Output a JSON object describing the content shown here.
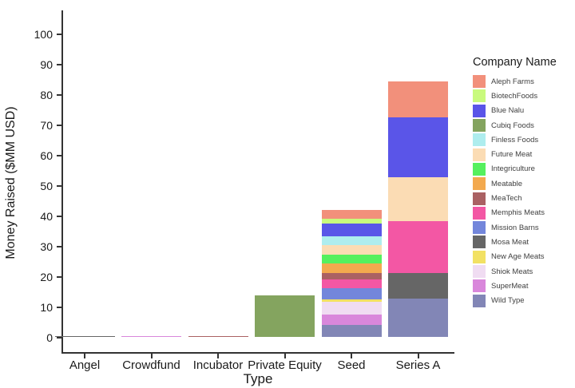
{
  "chart_data": {
    "type": "stacked_bar",
    "title": "",
    "xlabel": "Type",
    "ylabel": "Money Raised ($MM USD)",
    "legend_title": "Company Name",
    "legend_position": "right",
    "grid": false,
    "ylim": [
      0,
      100
    ],
    "yticks": [
      0,
      10,
      20,
      30,
      40,
      50,
      60,
      70,
      80,
      90,
      100
    ],
    "categories": [
      "Angel",
      "Crowdfund",
      "Incubator",
      "Private Equity",
      "Seed",
      "Series A"
    ],
    "companies": [
      {
        "name": "Aleph Farms",
        "color": "#F2907B"
      },
      {
        "name": "BiotechFoods",
        "color": "#C9FA7D"
      },
      {
        "name": "Blue Nalu",
        "color": "#5A55E8"
      },
      {
        "name": "Cubiq Foods",
        "color": "#84A45F"
      },
      {
        "name": "Finless Foods",
        "color": "#AEEDEE"
      },
      {
        "name": "Future Meat",
        "color": "#FBDCB4"
      },
      {
        "name": "Integriculture",
        "color": "#55F05E"
      },
      {
        "name": "Meatable",
        "color": "#F3A94E"
      },
      {
        "name": "MeaTech",
        "color": "#AA6163"
      },
      {
        "name": "Memphis Meats",
        "color": "#F357A4"
      },
      {
        "name": "Mission Barns",
        "color": "#7386DB"
      },
      {
        "name": "Mosa Meat",
        "color": "#666666"
      },
      {
        "name": "New Age Meats",
        "color": "#F2E163"
      },
      {
        "name": "Shiok Meats",
        "color": "#F0DCF2"
      },
      {
        "name": "SuperMeat",
        "color": "#D987DB"
      },
      {
        "name": "Wild Type",
        "color": "#8286B6"
      }
    ],
    "stacks_note": "segments listed bottom-to-top; values in $MM USD",
    "stacks": {
      "Angel": [
        {
          "company": "Mosa Meat",
          "value": 0.4
        }
      ],
      "Crowdfund": [
        {
          "company": "SuperMeat",
          "value": 0.3
        }
      ],
      "Incubator": [
        {
          "company": "MeaTech",
          "value": 0.5
        }
      ],
      "Private Equity": [
        {
          "company": "Cubiq Foods",
          "value": 13.8
        }
      ],
      "Seed": [
        {
          "company": "Wild Type",
          "value": 4.1
        },
        {
          "company": "SuperMeat",
          "value": 3.3
        },
        {
          "company": "Shiok Meats",
          "value": 4.2
        },
        {
          "company": "New Age Meats",
          "value": 0.8
        },
        {
          "company": "Mission Barns",
          "value": 3.9
        },
        {
          "company": "Memphis Meats",
          "value": 2.7
        },
        {
          "company": "MeaTech",
          "value": 2.3
        },
        {
          "company": "Meatable",
          "value": 3.1
        },
        {
          "company": "Integriculture",
          "value": 2.9
        },
        {
          "company": "Future Meat",
          "value": 3.1
        },
        {
          "company": "Finless Foods",
          "value": 3.0
        },
        {
          "company": "Blue Nalu",
          "value": 4.0
        },
        {
          "company": "BiotechFoods",
          "value": 1.7
        },
        {
          "company": "Aleph Farms",
          "value": 2.9
        }
      ],
      "Series A": [
        {
          "company": "Wild Type",
          "value": 12.7
        },
        {
          "company": "Mosa Meat",
          "value": 8.6
        },
        {
          "company": "Memphis Meats",
          "value": 17.0
        },
        {
          "company": "Future Meat",
          "value": 14.4
        },
        {
          "company": "Blue Nalu",
          "value": 19.7
        },
        {
          "company": "Aleph Farms",
          "value": 11.9
        }
      ]
    },
    "axis_color": "#333333",
    "text_color": "#1a1a1a"
  }
}
